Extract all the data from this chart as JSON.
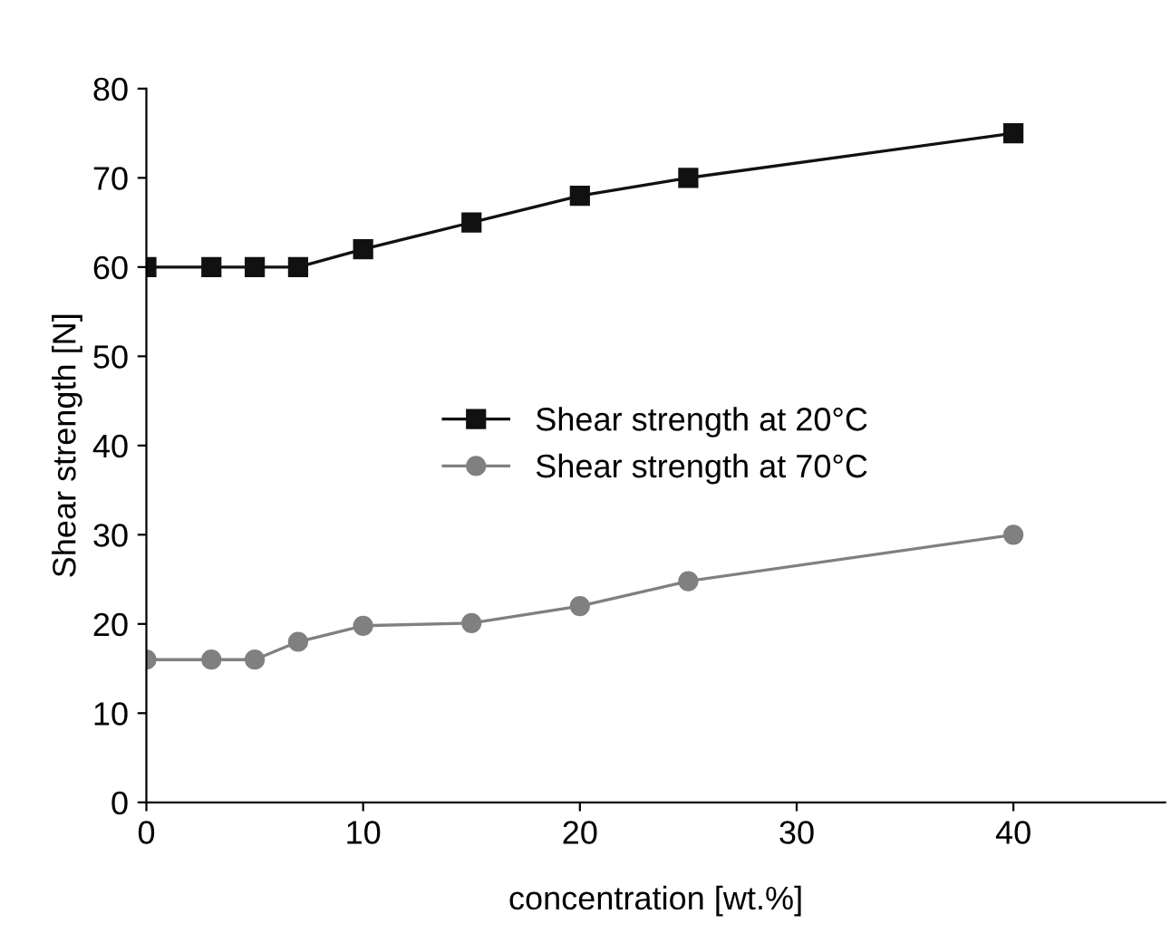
{
  "chart_data": {
    "type": "line",
    "xlabel": "concentration [wt.%]",
    "ylabel": "Shear strength [N]",
    "x": [
      0,
      3,
      5,
      7,
      10,
      15,
      20,
      25,
      40
    ],
    "series": [
      {
        "name": "Shear strength at 20°C",
        "color": "#111111",
        "marker": "square",
        "values": [
          60,
          60,
          60,
          60,
          62,
          65,
          68,
          70,
          75
        ]
      },
      {
        "name": "Shear strength at 70°C",
        "color": "#808080",
        "marker": "circle",
        "values": [
          16,
          16,
          16,
          18,
          19.8,
          20.1,
          22,
          24.8,
          30
        ]
      }
    ],
    "xlim": [
      0,
      47
    ],
    "xticks": [
      0,
      10,
      20,
      30,
      40
    ],
    "ylim": [
      0,
      80
    ],
    "yticks": [
      0,
      10,
      20,
      30,
      40,
      50,
      60,
      70,
      80
    ],
    "grid": false,
    "legend": "center",
    "line_style": "solid"
  }
}
